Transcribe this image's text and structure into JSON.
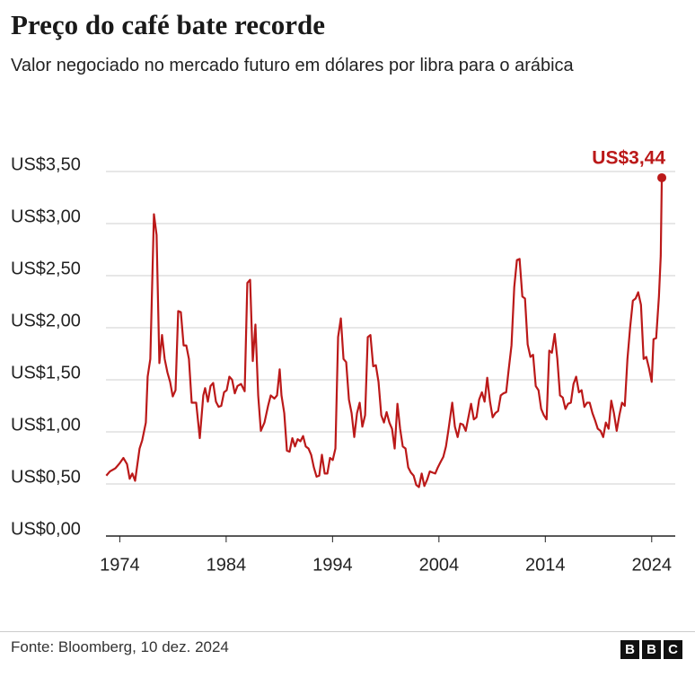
{
  "chart_data": {
    "type": "line",
    "title": "Preço do café bate recorde",
    "subtitle": "Valor negociado no mercado futuro em  dólares por libra para o arábica",
    "source": "Fonte: Bloomberg, 10 dez. 2024",
    "logo": [
      "B",
      "B",
      "C"
    ],
    "grid": true,
    "xlim": [
      1972.7,
      2025.2
    ],
    "xticks": [
      1974,
      1984,
      1994,
      2004,
      2014,
      2024
    ],
    "ylim": [
      0,
      3.5
    ],
    "yticks": [
      {
        "value": 0,
        "label": "US$0,00"
      },
      {
        "value": 0.5,
        "label": "US$0,50"
      },
      {
        "value": 1,
        "label": "US$1,00"
      },
      {
        "value": 1.5,
        "label": "US$1,50"
      },
      {
        "value": 2,
        "label": "US$2,00"
      },
      {
        "value": 2.5,
        "label": "US$2,50"
      },
      {
        "value": 3,
        "label": "US$3,00"
      },
      {
        "value": 3.5,
        "label": "US$3,50"
      }
    ],
    "annotation": {
      "x": 2024.95,
      "value": 3.44,
      "label": "US$3,44"
    },
    "x": [
      1972.73,
      1973.07,
      1973.58,
      1974.0,
      1974.34,
      1974.68,
      1974.93,
      1975.18,
      1975.44,
      1975.86,
      1976.11,
      1976.45,
      1976.62,
      1976.87,
      1977.21,
      1977.46,
      1977.72,
      1977.97,
      1978.22,
      1978.48,
      1978.73,
      1978.98,
      1979.24,
      1979.49,
      1979.74,
      1980.0,
      1980.25,
      1980.5,
      1980.76,
      1981.18,
      1981.52,
      1981.85,
      1982.02,
      1982.28,
      1982.53,
      1982.78,
      1983.04,
      1983.29,
      1983.54,
      1983.8,
      1984.05,
      1984.3,
      1984.56,
      1984.81,
      1985.06,
      1985.4,
      1985.74,
      1985.99,
      1986.25,
      1986.5,
      1986.75,
      1987.01,
      1987.26,
      1987.6,
      1987.94,
      1988.19,
      1988.53,
      1988.78,
      1989.03,
      1989.2,
      1989.46,
      1989.71,
      1989.96,
      1990.22,
      1990.47,
      1990.72,
      1990.98,
      1991.23,
      1991.48,
      1991.74,
      1991.99,
      1992.24,
      1992.5,
      1992.75,
      1993.0,
      1993.26,
      1993.51,
      1993.76,
      1994.02,
      1994.27,
      1994.52,
      1994.78,
      1995.03,
      1995.28,
      1995.54,
      1995.79,
      1996.04,
      1996.3,
      1996.55,
      1996.8,
      1997.06,
      1997.31,
      1997.56,
      1997.82,
      1998.07,
      1998.32,
      1998.58,
      1998.83,
      1999.08,
      1999.34,
      1999.59,
      1999.84,
      2000.1,
      2000.35,
      2000.6,
      2000.86,
      2001.11,
      2001.36,
      2001.62,
      2001.87,
      2002.12,
      2002.38,
      2002.63,
      2002.89,
      2003.14,
      2003.39,
      2003.65,
      2003.9,
      2004.15,
      2004.41,
      2004.66,
      2004.91,
      2005.25,
      2005.5,
      2005.76,
      2006.01,
      2006.26,
      2006.52,
      2006.77,
      2007.02,
      2007.28,
      2007.53,
      2007.78,
      2008.04,
      2008.29,
      2008.54,
      2008.8,
      2009.05,
      2009.3,
      2009.56,
      2009.81,
      2010.06,
      2010.32,
      2010.57,
      2010.82,
      2011.08,
      2011.33,
      2011.58,
      2011.84,
      2012.09,
      2012.34,
      2012.6,
      2012.85,
      2013.1,
      2013.36,
      2013.61,
      2013.86,
      2014.12,
      2014.37,
      2014.62,
      2014.88,
      2015.13,
      2015.38,
      2015.64,
      2015.89,
      2016.14,
      2016.4,
      2016.65,
      2016.9,
      2017.16,
      2017.41,
      2017.67,
      2017.92,
      2018.17,
      2018.43,
      2018.68,
      2018.93,
      2019.19,
      2019.44,
      2019.69,
      2019.95,
      2020.2,
      2020.45,
      2020.71,
      2020.96,
      2021.21,
      2021.47,
      2021.72,
      2021.97,
      2022.23,
      2022.48,
      2022.73,
      2022.99,
      2023.24,
      2023.49,
      2023.75,
      2024.0,
      2024.17,
      2024.42,
      2024.68,
      2024.85,
      2024.95
    ],
    "series": [
      {
        "name": "Arábica",
        "color": "#bb1919",
        "values": [
          0.58,
          0.62,
          0.65,
          0.7,
          0.75,
          0.69,
          0.55,
          0.6,
          0.53,
          0.84,
          0.92,
          1.09,
          1.53,
          1.7,
          3.09,
          2.89,
          1.66,
          1.93,
          1.7,
          1.57,
          1.48,
          1.34,
          1.4,
          2.16,
          2.15,
          1.83,
          1.83,
          1.7,
          1.28,
          1.28,
          0.94,
          1.35,
          1.42,
          1.29,
          1.44,
          1.47,
          1.29,
          1.24,
          1.25,
          1.38,
          1.4,
          1.53,
          1.5,
          1.37,
          1.44,
          1.46,
          1.39,
          2.43,
          2.46,
          1.68,
          2.03,
          1.35,
          1.01,
          1.09,
          1.25,
          1.35,
          1.32,
          1.35,
          1.6,
          1.35,
          1.18,
          0.82,
          0.81,
          0.94,
          0.86,
          0.93,
          0.91,
          0.96,
          0.86,
          0.84,
          0.78,
          0.66,
          0.57,
          0.58,
          0.78,
          0.6,
          0.6,
          0.75,
          0.73,
          0.84,
          1.91,
          2.09,
          1.7,
          1.67,
          1.31,
          1.18,
          0.95,
          1.18,
          1.28,
          1.05,
          1.16,
          1.91,
          1.93,
          1.63,
          1.64,
          1.48,
          1.16,
          1.09,
          1.19,
          1.09,
          1.03,
          0.84,
          1.27,
          1.03,
          0.86,
          0.84,
          0.66,
          0.61,
          0.58,
          0.49,
          0.47,
          0.6,
          0.48,
          0.54,
          0.62,
          0.61,
          0.6,
          0.66,
          0.71,
          0.76,
          0.86,
          1.03,
          1.28,
          1.05,
          0.95,
          1.08,
          1.07,
          1.01,
          1.14,
          1.27,
          1.12,
          1.14,
          1.31,
          1.38,
          1.29,
          1.52,
          1.29,
          1.14,
          1.18,
          1.2,
          1.35,
          1.37,
          1.38,
          1.61,
          1.83,
          2.39,
          2.65,
          2.66,
          2.3,
          2.28,
          1.84,
          1.72,
          1.74,
          1.44,
          1.4,
          1.22,
          1.16,
          1.12,
          1.78,
          1.76,
          1.94,
          1.7,
          1.35,
          1.33,
          1.22,
          1.27,
          1.28,
          1.46,
          1.53,
          1.38,
          1.4,
          1.24,
          1.28,
          1.28,
          1.18,
          1.11,
          1.03,
          1.01,
          0.95,
          1.09,
          1.03,
          1.3,
          1.18,
          1.01,
          1.16,
          1.28,
          1.25,
          1.7,
          2.0,
          2.26,
          2.28,
          2.34,
          2.22,
          1.7,
          1.72,
          1.61,
          1.48,
          1.89,
          1.9,
          2.3,
          2.69,
          3.44
        ]
      }
    ]
  }
}
